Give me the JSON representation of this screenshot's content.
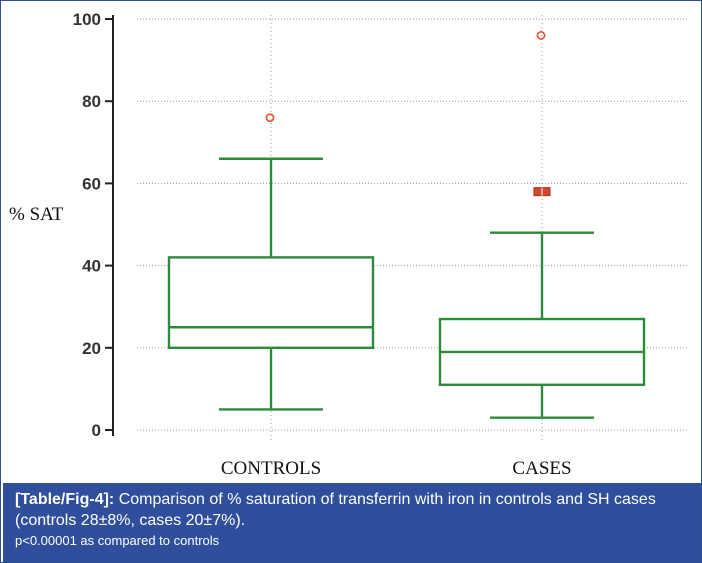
{
  "chart_data": {
    "type": "box",
    "ylabel": "% SAT",
    "ylim": [
      0,
      100
    ],
    "yticks": [
      "0",
      "20",
      "40",
      "60",
      "80",
      "100"
    ],
    "grid": true,
    "categories": [
      "CONTROLS",
      "CASES"
    ],
    "boxes": [
      {
        "name": "CONTROLS",
        "whisker_low": 5,
        "q1": 20,
        "median": 25,
        "q3": 42,
        "whisker_high": 66,
        "outliers": [
          76
        ],
        "far_outliers": []
      },
      {
        "name": "CASES",
        "whisker_low": 3,
        "q1": 11,
        "median": 19,
        "q3": 27,
        "whisker_high": 48,
        "outliers": [
          96
        ],
        "far_outliers": [
          58
        ]
      }
    ],
    "colors": {
      "box": "#2e8b3a",
      "outlier": "#e8502a",
      "far_outlier": "#d6452e",
      "grid": "#999999",
      "caption_bg": "#2f4f9c"
    }
  },
  "caption": {
    "label": "[Table/Fig-4]:",
    "text": " Comparison of % saturation of transferrin with iron in controls and SH cases (controls 28±8%, cases 20±7%).",
    "note": "p<0.00001 as compared to controls"
  }
}
